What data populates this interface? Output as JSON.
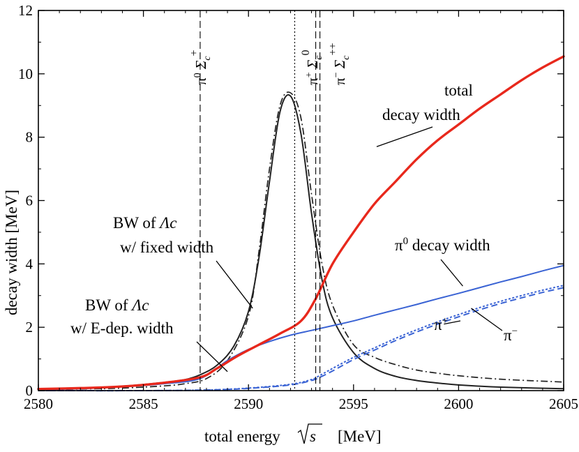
{
  "chart_data": {
    "type": "line",
    "title": "",
    "xlabel": "total energy",
    "xlabel_sqrt": "s",
    "xlabel_unit": "[MeV]",
    "ylabel": "decay width [MeV]",
    "xlim": [
      2580,
      2605
    ],
    "ylim": [
      0,
      12
    ],
    "xticks": [
      2580,
      2585,
      2590,
      2595,
      2600,
      2605
    ],
    "yticks": [
      0,
      2,
      4,
      6,
      8,
      10,
      12
    ],
    "grid": false,
    "series": [
      {
        "name": "total decay width",
        "color": "#e8281c",
        "style": "solid-thick",
        "x": [
          2580,
          2582,
          2584,
          2586,
          2587.7,
          2588.5,
          2589.5,
          2590.5,
          2591.5,
          2592.5,
          2593.2,
          2594,
          2595,
          2596,
          2597,
          2598,
          2599,
          2600,
          2601,
          2602,
          2603,
          2604,
          2605
        ],
        "y": [
          0.05,
          0.08,
          0.13,
          0.25,
          0.42,
          0.7,
          1.1,
          1.45,
          1.8,
          2.2,
          2.9,
          4.0,
          5.0,
          5.9,
          6.6,
          7.3,
          7.9,
          8.4,
          8.9,
          9.35,
          9.8,
          10.2,
          10.55
        ]
      },
      {
        "name": "π0 decay width",
        "color": "#3a63d4",
        "style": "solid",
        "x": [
          2580,
          2582,
          2584,
          2586,
          2587.7,
          2589,
          2590,
          2591,
          2592,
          2593,
          2594,
          2595,
          2596,
          2597,
          2598,
          2599,
          2600,
          2601,
          2602,
          2603,
          2604,
          2605
        ],
        "y": [
          0.03,
          0.06,
          0.12,
          0.22,
          0.38,
          0.95,
          1.3,
          1.55,
          1.75,
          1.9,
          2.05,
          2.2,
          2.38,
          2.55,
          2.72,
          2.9,
          3.07,
          3.25,
          3.43,
          3.6,
          3.78,
          3.95
        ]
      },
      {
        "name": "π+",
        "color": "#3a63d4",
        "style": "dotted",
        "x": [
          2580,
          2585,
          2588,
          2590,
          2592,
          2593,
          2593.4,
          2594,
          2595,
          2596,
          2597,
          2598,
          2599,
          2600,
          2601,
          2602,
          2603,
          2604,
          2605
        ],
        "y": [
          0.0,
          0.0,
          0.02,
          0.08,
          0.2,
          0.35,
          0.48,
          0.7,
          1.05,
          1.35,
          1.65,
          1.92,
          2.17,
          2.4,
          2.62,
          2.82,
          3.0,
          3.17,
          3.32
        ]
      },
      {
        "name": "π−",
        "color": "#3a63d4",
        "style": "dashed",
        "x": [
          2580,
          2585,
          2588,
          2590,
          2592,
          2593,
          2593.4,
          2594,
          2595,
          2596,
          2597,
          2598,
          2599,
          2600,
          2601,
          2602,
          2603,
          2604,
          2605
        ],
        "y": [
          0.0,
          0.0,
          0.02,
          0.07,
          0.18,
          0.32,
          0.42,
          0.62,
          0.98,
          1.28,
          1.58,
          1.85,
          2.1,
          2.33,
          2.55,
          2.75,
          2.93,
          3.1,
          3.25
        ]
      },
      {
        "name": "BW of Λc w/ fixed width",
        "color": "#222222",
        "style": "dash-dot",
        "x": [
          2580,
          2582,
          2584,
          2586,
          2587,
          2588,
          2589,
          2590,
          2590.5,
          2591,
          2591.5,
          2592,
          2592.5,
          2593,
          2593.5,
          2594,
          2595,
          2596,
          2597,
          2598,
          2599,
          2600,
          2602,
          2605
        ],
        "y": [
          0.02,
          0.05,
          0.08,
          0.15,
          0.22,
          0.38,
          0.95,
          2.35,
          4.4,
          7.0,
          9.0,
          9.4,
          8.6,
          6.2,
          4.0,
          2.7,
          1.45,
          1.05,
          0.82,
          0.65,
          0.55,
          0.47,
          0.36,
          0.27
        ]
      },
      {
        "name": "BW of Λc w/ E-dep. width",
        "color": "#222222",
        "style": "solid",
        "x": [
          2580,
          2582,
          2584,
          2586,
          2587,
          2587.7,
          2588.5,
          2589.3,
          2590,
          2590.5,
          2591,
          2591.5,
          2592,
          2592.5,
          2593,
          2593.5,
          2594,
          2595,
          2596,
          2597,
          2598,
          2599,
          2600,
          2602,
          2605
        ],
        "y": [
          0.05,
          0.08,
          0.14,
          0.26,
          0.35,
          0.5,
          0.8,
          1.4,
          2.5,
          4.2,
          6.6,
          8.8,
          9.3,
          8.1,
          5.6,
          3.5,
          2.3,
          1.2,
          0.7,
          0.45,
          0.32,
          0.24,
          0.18,
          0.11,
          0.06
        ]
      }
    ],
    "vlines": [
      {
        "x": 2587.7,
        "style": "dashed",
        "label_pi": "π",
        "label_pi_sup": "0",
        "label_sigma": "Σ",
        "label_sigma_sub": "c",
        "label_sigma_sup": "+"
      },
      {
        "x": 2593.2,
        "style": "dashed",
        "label_pi": "π",
        "label_pi_sup": "+",
        "label_sigma": "Σ",
        "label_sigma_sub": "c",
        "label_sigma_sup": "0"
      },
      {
        "x": 2593.4,
        "style": "dashed",
        "label_pi": "π",
        "label_pi_sup": "−",
        "label_sigma": "Σ",
        "label_sigma_sub": "c",
        "label_sigma_sup": "++"
      },
      {
        "x": 2592.2,
        "style": "dotted"
      }
    ],
    "annotations": {
      "total_line1": "total",
      "total_line2": "decay width",
      "pi0_main": "π",
      "pi0_sup": "0",
      "pi0_rest": " decay width",
      "pip_main": "π",
      "pip_sup": "+",
      "pim_main": "π",
      "pim_sup": "−",
      "bw_fixed_line1": "BW of ",
      "bw_fixed_lambda": "Λc",
      "bw_fixed_line2": "w/ fixed width",
      "bw_edep_line1": "BW of ",
      "bw_edep_lambda": "Λc",
      "bw_edep_line2": "w/ E-dep. width"
    }
  }
}
